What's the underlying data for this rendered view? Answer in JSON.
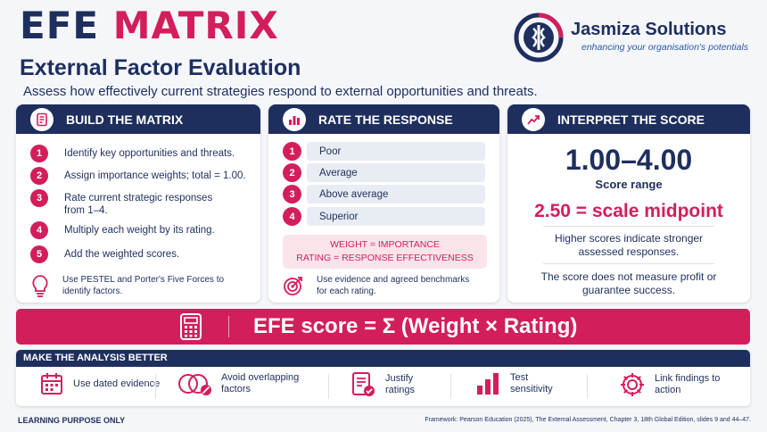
{
  "header": {
    "title_part1": "EFE",
    "title_part2": "MATRIX",
    "subtitle": "External Factor Evaluation",
    "description": "Assess how effectively current strategies respond to external opportunities and threats."
  },
  "brand": {
    "name": "Jasmiza Solutions",
    "tagline": "enhancing your organisation's potentials"
  },
  "build": {
    "heading": "BUILD THE MATRIX",
    "steps": [
      {
        "num": "1",
        "text": "Identify key opportunities and threats."
      },
      {
        "num": "2",
        "text": "Assign importance weights; total = 1.00."
      },
      {
        "num": "3",
        "text": "Rate current strategic responses from 1–4."
      },
      {
        "num": "4",
        "text": "Multiply each weight by its rating."
      },
      {
        "num": "5",
        "text": "Add the weighted scores."
      }
    ],
    "hint": "Use PESTEL and Porter's Five Forces to identify factors."
  },
  "rate": {
    "heading": "RATE THE RESPONSE",
    "levels": [
      {
        "num": "1",
        "label": "Poor"
      },
      {
        "num": "2",
        "label": "Average"
      },
      {
        "num": "3",
        "label": "Above average"
      },
      {
        "num": "4",
        "label": "Superior"
      }
    ],
    "formula_line1": "WEIGHT = IMPORTANCE",
    "formula_line2": "RATING = RESPONSE EFFECTIVENESS",
    "hint": "Use evidence and agreed benchmarks for each rating."
  },
  "interpret": {
    "heading": "INTERPRET THE SCORE",
    "range": "1.00–4.00",
    "range_label": "Score range",
    "midpoint": "2.50 = scale midpoint",
    "note1": "Higher scores indicate stronger assessed responses.",
    "note2": "The score does not measure profit or guarantee success."
  },
  "banner": {
    "formula": "EFE score = Σ (Weight × Rating)"
  },
  "better": {
    "heading": "MAKE THE ANALYSIS BETTER",
    "tips": [
      {
        "icon": "calendar-icon",
        "text": "Use dated evidence"
      },
      {
        "icon": "overlap-circles-icon",
        "text": "Avoid overlapping factors"
      },
      {
        "icon": "document-check-icon",
        "text": "Justify ratings"
      },
      {
        "icon": "bar-chart-icon",
        "text": "Test sensitivity"
      },
      {
        "icon": "gear-icon",
        "text": "Link findings to action"
      }
    ]
  },
  "footer": {
    "left": "LEARNING PURPOSE ONLY",
    "right": "Framework: Pearson Education (2025), The External Assessment, Chapter 3, 18th Global Edition, slides 9 and 44–47."
  },
  "colors": {
    "navy": "#1e2f5e",
    "pink": "#d31e5c",
    "light_pink": "#fbe3ea",
    "light_gray": "#e8ecf3"
  }
}
